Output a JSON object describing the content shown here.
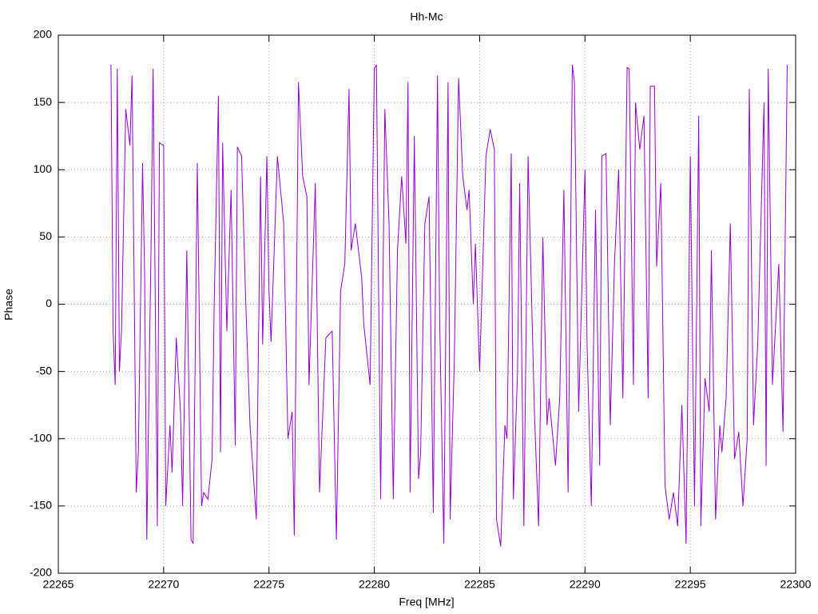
{
  "chart_data": {
    "type": "line",
    "title": "Hh-Mc",
    "x_label": "Freq [MHz]",
    "y_label": "Phase",
    "color": "#9400d3",
    "grid": true,
    "xlim": [
      22265,
      22300
    ],
    "xticks": [
      22265,
      22270,
      22275,
      22280,
      22285,
      22290,
      22295,
      22300
    ],
    "ylim": [
      -200,
      200
    ],
    "yticks": [
      -200,
      -150,
      -100,
      -50,
      0,
      50,
      100,
      150,
      200
    ],
    "x": [
      22267.5,
      22267.6,
      22267.7,
      22267.8,
      22267.9,
      22268.0,
      22268.2,
      22268.4,
      22268.5,
      22268.7,
      22268.8,
      22269.0,
      22269.1,
      22269.2,
      22269.4,
      22269.5,
      22269.7,
      22269.8,
      22270.0,
      22270.1,
      22270.3,
      22270.4,
      22270.6,
      22270.8,
      22270.9,
      22271.1,
      22271.3,
      22271.4,
      22271.6,
      22271.8,
      22271.9,
      22272.1,
      22272.3,
      22272.4,
      22272.6,
      22272.7,
      22272.8,
      22273.0,
      22273.2,
      22273.4,
      22273.5,
      22273.7,
      22273.9,
      22274.1,
      22274.4,
      22274.6,
      22274.7,
      22274.9,
      22275.0,
      22275.1,
      22275.4,
      22275.7,
      22275.9,
      22276.1,
      22276.2,
      22276.4,
      22276.6,
      22276.8,
      22276.9,
      22277.2,
      22277.4,
      22277.7,
      22278.0,
      22278.2,
      22278.4,
      22278.6,
      22278.8,
      22278.9,
      22279.1,
      22279.4,
      22279.5,
      22279.8,
      22280.0,
      22280.1,
      22280.3,
      22280.5,
      22280.7,
      22280.9,
      22281.1,
      22281.3,
      22281.5,
      22281.6,
      22281.7,
      22281.9,
      22282.1,
      22282.2,
      22282.4,
      22282.6,
      22282.8,
      22283.0,
      22283.1,
      22283.3,
      22283.5,
      22283.6,
      22283.8,
      22284.0,
      22284.2,
      22284.4,
      22284.5,
      22284.7,
      22284.8,
      22285.0,
      22285.3,
      22285.5,
      22285.7,
      22285.8,
      22286.0,
      22286.2,
      22286.3,
      22286.5,
      22286.6,
      22286.8,
      22286.9,
      22287.1,
      22287.3,
      22287.6,
      22287.8,
      22288.0,
      22288.2,
      22288.3,
      22288.6,
      22288.8,
      22289.0,
      22289.2,
      22289.4,
      22289.5,
      22289.7,
      22290.0,
      22290.1,
      22290.3,
      22290.5,
      22290.7,
      22290.8,
      22291.0,
      22291.2,
      22291.4,
      22291.6,
      22291.8,
      22292.0,
      22292.1,
      22292.3,
      22292.4,
      22292.6,
      22292.8,
      22293.0,
      22293.1,
      22293.3,
      22293.4,
      22293.6,
      22293.8,
      22294.0,
      22294.2,
      22294.4,
      22294.6,
      22294.8,
      22295.0,
      22295.2,
      22295.4,
      22295.5,
      22295.7,
      22295.9,
      22296.0,
      22296.2,
      22296.4,
      22296.5,
      22296.7,
      22296.9,
      22297.1,
      22297.3,
      22297.5,
      22297.7,
      22297.8,
      22298.0,
      22298.2,
      22298.5,
      22298.6,
      22298.7,
      22298.9,
      22299.1,
      22299.2,
      22299.4,
      22299.6
    ],
    "values": [
      178,
      -20,
      -60,
      175,
      -50,
      -20,
      145,
      118,
      170,
      -140,
      -110,
      105,
      20,
      -175,
      40,
      175,
      -165,
      120,
      118,
      -150,
      -90,
      -125,
      -25,
      -80,
      -150,
      40,
      -175,
      -178,
      105,
      -150,
      -140,
      -145,
      -115,
      0,
      155,
      -110,
      120,
      -20,
      85,
      -105,
      117,
      110,
      0,
      -90,
      -160,
      95,
      -30,
      110,
      10,
      -28,
      110,
      60,
      -100,
      -80,
      -172,
      165,
      95,
      80,
      -60,
      90,
      -140,
      -25,
      -20,
      -175,
      10,
      30,
      160,
      40,
      60,
      20,
      -15,
      -60,
      175,
      178,
      -145,
      145,
      60,
      -145,
      40,
      95,
      45,
      165,
      -140,
      125,
      -130,
      -110,
      60,
      80,
      -155,
      170,
      -10,
      -178,
      165,
      -160,
      -40,
      168,
      95,
      70,
      85,
      0,
      45,
      -50,
      110,
      130,
      115,
      -160,
      -180,
      -90,
      -100,
      112,
      -145,
      -50,
      90,
      -165,
      110,
      -80,
      -165,
      50,
      -90,
      -70,
      -120,
      -70,
      85,
      -140,
      178,
      165,
      -80,
      100,
      -30,
      -150,
      70,
      -120,
      110,
      112,
      -90,
      30,
      100,
      -70,
      176,
      175,
      -60,
      150,
      115,
      140,
      -70,
      162,
      162,
      28,
      90,
      -135,
      -160,
      -140,
      -165,
      -75,
      -178,
      110,
      -150,
      140,
      -165,
      -55,
      -80,
      40,
      -160,
      -90,
      -110,
      -70,
      60,
      -115,
      -95,
      -150,
      -100,
      160,
      -90,
      -30,
      150,
      -120,
      175,
      -60,
      0,
      30,
      -95,
      178
    ]
  }
}
